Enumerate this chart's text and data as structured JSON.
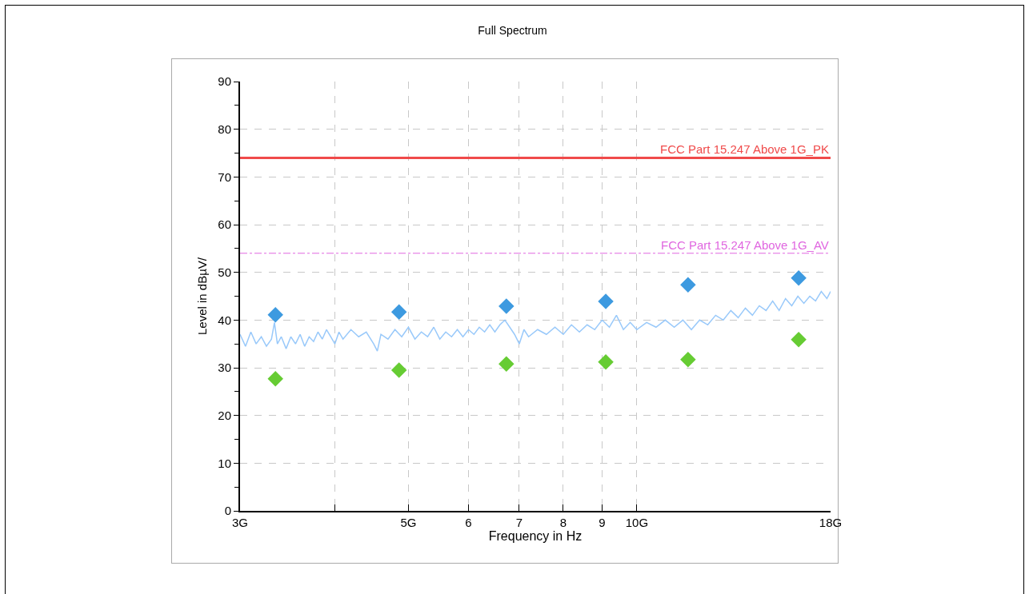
{
  "chart_data": {
    "type": "line",
    "title": "Full Spectrum",
    "xlabel": "Frequency in Hz",
    "ylabel": "Level in dBµV/",
    "log": "x",
    "grid": true,
    "xlim": [
      3,
      18
    ],
    "xticks": [
      {
        "value": 3,
        "label": "3G"
      },
      {
        "value": 4,
        "label": null
      },
      {
        "value": 5,
        "label": "5G"
      },
      6,
      7,
      8,
      9,
      {
        "value": 10,
        "label": "10G"
      },
      {
        "value": 18,
        "label": "18G"
      }
    ],
    "ylim": [
      0,
      90
    ],
    "yticks": [
      0,
      10,
      20,
      30,
      40,
      50,
      60,
      70,
      80,
      90
    ],
    "series": [
      {
        "marker": "none",
        "color": "#99c9fa",
        "x": [
          3.0,
          3.05,
          3.1,
          3.15,
          3.2,
          3.25,
          3.3,
          3.33,
          3.36,
          3.4,
          3.45,
          3.5,
          3.55,
          3.6,
          3.65,
          3.7,
          3.75,
          3.8,
          3.85,
          3.9,
          3.95,
          4.0,
          4.05,
          4.1,
          4.2,
          4.3,
          4.4,
          4.5,
          4.55,
          4.6,
          4.7,
          4.8,
          4.9,
          5.0,
          5.1,
          5.2,
          5.3,
          5.4,
          5.5,
          5.6,
          5.7,
          5.8,
          5.9,
          6.0,
          6.1,
          6.2,
          6.3,
          6.4,
          6.5,
          6.6,
          6.7,
          6.8,
          6.9,
          7.0,
          7.1,
          7.2,
          7.4,
          7.6,
          7.8,
          8.0,
          8.2,
          8.4,
          8.6,
          8.8,
          9.0,
          9.2,
          9.4,
          9.6,
          9.8,
          10.0,
          10.3,
          10.6,
          10.9,
          11.2,
          11.5,
          11.8,
          12.1,
          12.4,
          12.7,
          13.0,
          13.3,
          13.6,
          13.9,
          14.2,
          14.5,
          14.8,
          15.1,
          15.4,
          15.7,
          16.0,
          16.3,
          16.6,
          16.9,
          17.2,
          17.5,
          17.8,
          18.0
        ],
        "values": [
          37,
          34.5,
          37.5,
          35,
          36.5,
          34.5,
          36,
          39.5,
          35,
          36.5,
          34,
          36.5,
          35,
          37,
          34.5,
          36.5,
          35.5,
          37.5,
          36,
          38,
          36.5,
          35,
          37.5,
          36,
          38,
          36.5,
          37.5,
          35,
          33.5,
          37,
          36,
          38,
          36.5,
          38.5,
          36,
          37.5,
          36.5,
          38.5,
          36,
          37.5,
          36.5,
          38,
          36.5,
          38,
          37,
          38.5,
          37.5,
          39,
          37.5,
          39,
          40,
          38.5,
          37,
          35,
          38,
          36.5,
          38,
          37,
          38.5,
          37,
          39,
          37.5,
          39,
          38,
          40,
          38.5,
          41,
          38,
          39.5,
          38,
          39.5,
          38.5,
          40,
          38.5,
          40,
          38,
          40,
          39,
          41,
          40,
          42,
          40.5,
          42.5,
          41,
          43,
          42,
          44,
          42,
          44.5,
          43,
          45,
          43.5,
          45,
          44,
          46,
          44.5,
          46
        ]
      },
      {
        "type": "scatter",
        "marker": "diamond",
        "color": "#3d9ae0",
        "x": [
          3.34,
          4.86,
          6.73,
          9.1,
          11.68,
          16.34
        ],
        "values": [
          41.1,
          41.7,
          42.9,
          43.9,
          47.4,
          48.8
        ]
      },
      {
        "type": "scatter",
        "marker": "diamond",
        "color": "#66cc33",
        "x": [
          3.34,
          4.86,
          6.73,
          9.1,
          11.68,
          16.34
        ],
        "values": [
          27.7,
          29.5,
          30.8,
          31.2,
          31.7,
          35.9
        ]
      }
    ],
    "ref_lines": [
      {
        "axis": "y",
        "value": 74,
        "label": "FCC Part 15.247 Above 1G_PK",
        "color": "#f04a4a",
        "line_style": "solid"
      },
      {
        "axis": "y",
        "value": 54,
        "label": "FCC Part 15.247 Above 1G_AV",
        "color": "#e066e0",
        "line_style": "dashed"
      }
    ]
  }
}
